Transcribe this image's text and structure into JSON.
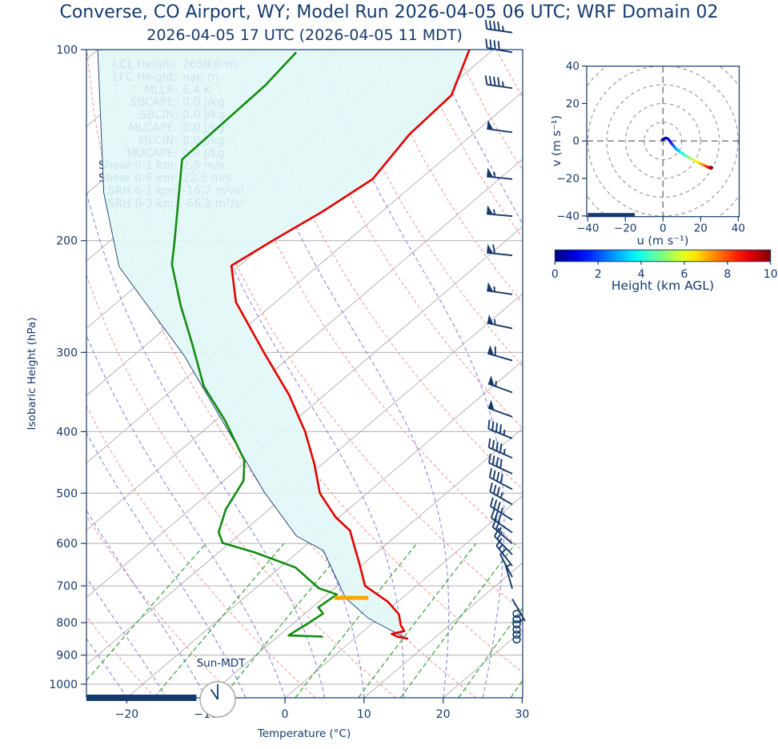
{
  "header": {
    "suptitle": "Converse, CO Airport, WY; Model Run 2026-04-05 06 UTC; WRF Domain 02",
    "plot_title": "2026-04-05 17 UTC  (2026-04-05 11 MDT)"
  },
  "stats": {
    "lines": [
      {
        "label": "LCL Height:",
        "value": "2659.0 m"
      },
      {
        "label": "LFC Height:",
        "value": "nan m"
      },
      {
        "label": "MLLR:",
        "value": "6.4 K"
      },
      {
        "label": "SBCAPE:",
        "value": "0.0 J/kg"
      },
      {
        "label": "SBCIN:",
        "value": "0.0 J/kg"
      },
      {
        "label": "MLCAPE:",
        "value": "0.0 J/kg"
      },
      {
        "label": "MLCIN:",
        "value": "0.0 J/kg"
      },
      {
        "label": "MUCAPE:",
        "value": "0.0 J/kg"
      },
      {
        "label": "Shear 0-1 km:",
        "value": "2.5 m/s"
      },
      {
        "label": "Shear 0-6 km:",
        "value": "22.3 m/s"
      },
      {
        "label": "SRH 0-1 km:",
        "value": "-16.7 m²/s²"
      },
      {
        "label": "SRH 0-3 km:",
        "value": "-66.1 m²/s²"
      }
    ]
  },
  "clock": {
    "label": "Sun-MDT",
    "time": "11:00"
  },
  "colors": {
    "navy": "#15396d",
    "temperature": "#e60000",
    "dewpoint": "#128c12",
    "parcel": "#15396d",
    "fill": "#e1f7f7",
    "lcl": "#FFA500",
    "isotherm": "#b5b5b5",
    "grid": "#b0b0b0",
    "dry_adiabat": "#f59090",
    "moist_adiabat": "#8585e8",
    "mixing_ratio": "#2f9e2f",
    "ring": "#9a9a9a"
  },
  "chart_data": {
    "type": "skewt-logp",
    "skewt": {
      "xlabel": "Temperature (°C)",
      "ylabel": "Isobaric Height (hPa)",
      "x_ticks": [
        -20,
        -10,
        0,
        10,
        20,
        30
      ],
      "y_ticks": [
        100,
        200,
        300,
        400,
        500,
        600,
        700,
        800,
        900,
        1000
      ],
      "xlim_bottom": [
        -25,
        30
      ],
      "ylim": [
        1050,
        100
      ],
      "temperature_p_T": [
        [
          100,
          -73
        ],
        [
          118,
          -68.5
        ],
        [
          136,
          -68
        ],
        [
          160,
          -66
        ],
        [
          180,
          -67.5
        ],
        [
          200,
          -69.5
        ],
        [
          219,
          -71
        ],
        [
          250,
          -65
        ],
        [
          300,
          -54
        ],
        [
          350,
          -44.5
        ],
        [
          400,
          -37
        ],
        [
          450,
          -31
        ],
        [
          500,
          -26
        ],
        [
          545,
          -20.5
        ],
        [
          573,
          -16.6
        ],
        [
          608,
          -13.6
        ],
        [
          646,
          -10.5
        ],
        [
          700,
          -6.5
        ],
        [
          742,
          -1.2
        ],
        [
          776,
          2.0
        ],
        [
          808,
          3.9
        ],
        [
          825,
          5.2
        ],
        [
          833,
          4.0
        ],
        [
          842,
          5.2
        ],
        [
          848,
          6.8
        ]
      ],
      "dewpoint_p_T": [
        [
          101,
          -94.5
        ],
        [
          114,
          -93.5
        ],
        [
          149,
          -93
        ],
        [
          201,
          -81.7
        ],
        [
          218,
          -78.7
        ],
        [
          253,
          -71.5
        ],
        [
          291,
          -64.3
        ],
        [
          339,
          -56.6
        ],
        [
          384,
          -48.8
        ],
        [
          444,
          -40.4
        ],
        [
          478,
          -37.5
        ],
        [
          530,
          -35.5
        ],
        [
          576,
          -33
        ],
        [
          599,
          -30.9
        ],
        [
          620,
          -25.4
        ],
        [
          655,
          -18
        ],
        [
          706,
          -12
        ],
        [
          722,
          -8.8
        ],
        [
          757,
          -9.2
        ],
        [
          774,
          -7.7
        ],
        [
          792,
          -8.0
        ],
        [
          801,
          -8.1
        ],
        [
          825,
          -8.6
        ],
        [
          838,
          -8.8
        ],
        [
          841,
          -4.5
        ],
        [
          844,
          -4.2
        ]
      ],
      "parcel_p_T": [
        [
          100,
          -120
        ],
        [
          168,
          -98
        ],
        [
          220,
          -85
        ],
        [
          304,
          -63.5
        ],
        [
          426,
          -42.8
        ],
        [
          498,
          -33.2
        ],
        [
          584,
          -22.6
        ],
        [
          616,
          -17
        ],
        [
          731,
          -7.2
        ],
        [
          788,
          -1.2
        ],
        [
          846,
          6.4
        ]
      ],
      "lcl_marker": {
        "p": 731,
        "t_min": -8.6,
        "t_max": -4.3
      },
      "surface_bar": {
        "t_min": -25.1,
        "t_max": -11.2
      },
      "wind_barbs": [
        [
          94,
          45,
          278
        ],
        [
          101,
          40,
          280
        ],
        [
          115,
          45,
          278
        ],
        [
          135,
          50,
          278
        ],
        [
          160,
          55,
          276
        ],
        [
          183,
          55,
          275
        ],
        [
          211,
          60,
          276
        ],
        [
          243,
          55,
          278
        ],
        [
          275,
          55,
          282
        ],
        [
          309,
          60,
          286
        ],
        [
          347,
          55,
          290
        ],
        [
          379,
          50,
          290
        ],
        [
          410,
          45,
          292
        ],
        [
          440,
          45,
          294
        ],
        [
          466,
          40,
          295
        ],
        [
          493,
          40,
          298
        ],
        [
          521,
          35,
          300
        ],
        [
          551,
          35,
          302
        ],
        [
          577,
          30,
          305
        ],
        [
          600,
          25,
          310
        ],
        [
          625,
          20,
          316
        ],
        [
          651,
          15,
          322
        ],
        [
          678,
          12,
          332
        ],
        [
          707,
          8,
          344
        ],
        [
          734,
          5,
          150
        ]
      ],
      "calm_circle_p": [
        775,
        790,
        805,
        820,
        835,
        850
      ],
      "isotherm_step_c": 10,
      "dry_adiabat_theta_c": [
        -30,
        180,
        10
      ],
      "moist_adiabat_t0_c": [
        -60,
        45,
        5
      ],
      "mixing_ratio_g_kg": [
        0.4,
        1,
        2,
        4,
        7,
        10,
        16,
        24,
        32
      ]
    },
    "hodograph": {
      "xlabel": "u (m s⁻¹)",
      "ylabel": "v (m s⁻¹)",
      "xlim": [
        -40,
        40
      ],
      "ylim": [
        -40,
        40
      ],
      "ticks": [
        -40,
        -20,
        0,
        20,
        40
      ],
      "ring_radii": [
        10,
        20,
        30,
        40,
        50
      ],
      "ground_bar_u": [
        -40,
        -15
      ],
      "trace_u_v_h": [
        [
          -0.4,
          0.8,
          0.05
        ],
        [
          0,
          0.6,
          0.1
        ],
        [
          0.6,
          1.3,
          0.2
        ],
        [
          1.4,
          1.6,
          0.4
        ],
        [
          2.2,
          1.4,
          0.6
        ],
        [
          2.9,
          0.9,
          0.8
        ],
        [
          3.4,
          0.3,
          1.0
        ],
        [
          3.9,
          -0.4,
          1.2
        ],
        [
          4.4,
          -1.1,
          1.5
        ],
        [
          5.0,
          -1.9,
          1.8
        ],
        [
          5.7,
          -2.7,
          2.1
        ],
        [
          6.4,
          -3.5,
          2.4
        ],
        [
          7.1,
          -4.3,
          2.7
        ],
        [
          7.9,
          -5.0,
          3.0
        ],
        [
          8.7,
          -5.6,
          3.3
        ],
        [
          9.6,
          -6.2,
          3.6
        ],
        [
          10.6,
          -6.9,
          3.9
        ],
        [
          11.7,
          -7.6,
          4.2
        ],
        [
          12.9,
          -8.3,
          4.6
        ],
        [
          14.1,
          -9.0,
          5.0
        ],
        [
          15.4,
          -9.7,
          5.4
        ],
        [
          16.7,
          -10.4,
          5.8
        ],
        [
          18.0,
          -11.1,
          6.2
        ],
        [
          19.3,
          -11.8,
          6.6
        ],
        [
          20.6,
          -12.4,
          7.0
        ],
        [
          21.9,
          -13.0,
          7.5
        ],
        [
          23.0,
          -13.5,
          8.0
        ],
        [
          24.0,
          -14.0,
          8.5
        ],
        [
          24.9,
          -14.4,
          9.0
        ],
        [
          25.6,
          -14.6,
          9.4
        ],
        [
          25.3,
          -13.9,
          9.7
        ],
        [
          26.1,
          -14.2,
          10
        ]
      ]
    },
    "colorbar": {
      "label": "Height (km AGL)",
      "min": 0,
      "max": 10,
      "ticks": [
        0,
        2,
        4,
        6,
        8,
        10
      ],
      "colormap": "jet"
    }
  }
}
